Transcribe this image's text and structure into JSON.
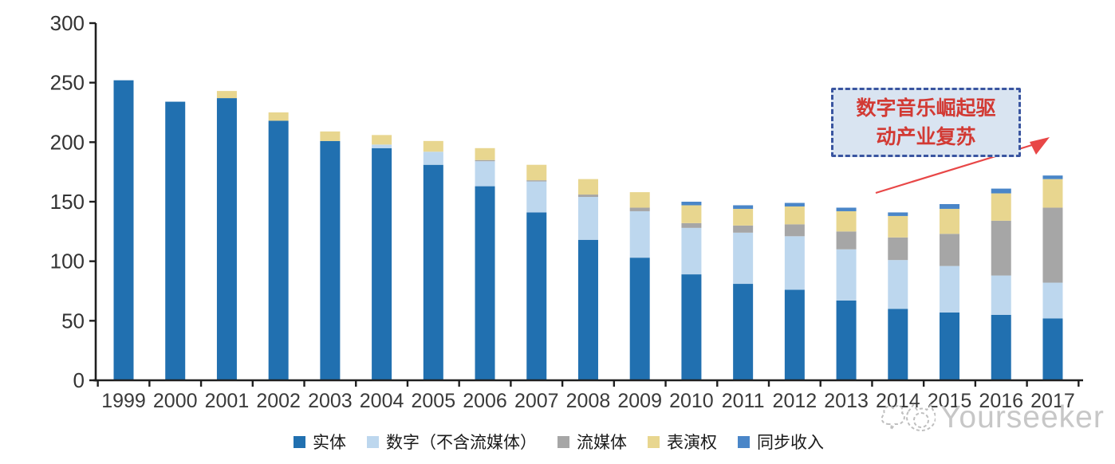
{
  "watermark": {
    "text": "Yourseeker"
  },
  "annotation": {
    "line1": "数字音乐崛起驱",
    "line2": "动产业复苏",
    "text_color": "#d23a34",
    "fill_color": "#d9e4f1",
    "border_color": "#3a55a0",
    "arrow_color": "#e84747"
  },
  "chart_data": {
    "type": "bar",
    "stacked": true,
    "title": "",
    "xlabel": "",
    "ylabel": "",
    "ylim": [
      0,
      300
    ],
    "yticks": [
      0,
      50,
      100,
      150,
      200,
      250,
      300
    ],
    "grid": false,
    "legend_position": "bottom",
    "categories": [
      "1999",
      "2000",
      "2001",
      "2002",
      "2003",
      "2004",
      "2005",
      "2006",
      "2007",
      "2008",
      "2009",
      "2010",
      "2011",
      "2012",
      "2013",
      "2014",
      "2015",
      "2016",
      "2017"
    ],
    "series": [
      {
        "key": "physical",
        "name": "实体",
        "color": "#2170b0",
        "values": [
          252,
          234,
          237,
          218,
          201,
          195,
          181,
          163,
          141,
          118,
          103,
          89,
          81,
          76,
          67,
          60,
          57,
          55,
          52
        ]
      },
      {
        "key": "digital-excl-streaming",
        "name": "数字（不含流媒体）",
        "color": "#bdd7ee",
        "values": [
          0,
          0,
          0,
          0,
          0,
          3,
          11,
          21,
          26,
          36,
          39,
          39,
          43,
          45,
          43,
          41,
          39,
          33,
          30
        ]
      },
      {
        "key": "streaming",
        "name": "流媒体",
        "color": "#a6a6a6",
        "values": [
          0,
          0,
          0,
          0,
          0,
          0,
          0,
          1,
          1,
          2,
          3,
          4,
          6,
          10,
          15,
          19,
          27,
          46,
          63
        ]
      },
      {
        "key": "performance-rights",
        "name": "表演权",
        "color": "#e8d68f",
        "values": [
          0,
          0,
          6,
          7,
          8,
          8,
          9,
          10,
          13,
          13,
          13,
          15,
          14,
          15,
          17,
          18,
          21,
          23,
          24
        ]
      },
      {
        "key": "sync-revenue",
        "name": "同步收入",
        "color": "#4a86c8",
        "values": [
          0,
          0,
          0,
          0,
          0,
          0,
          0,
          0,
          0,
          0,
          0,
          3,
          3,
          3,
          3,
          3,
          4,
          4,
          3
        ]
      }
    ]
  }
}
